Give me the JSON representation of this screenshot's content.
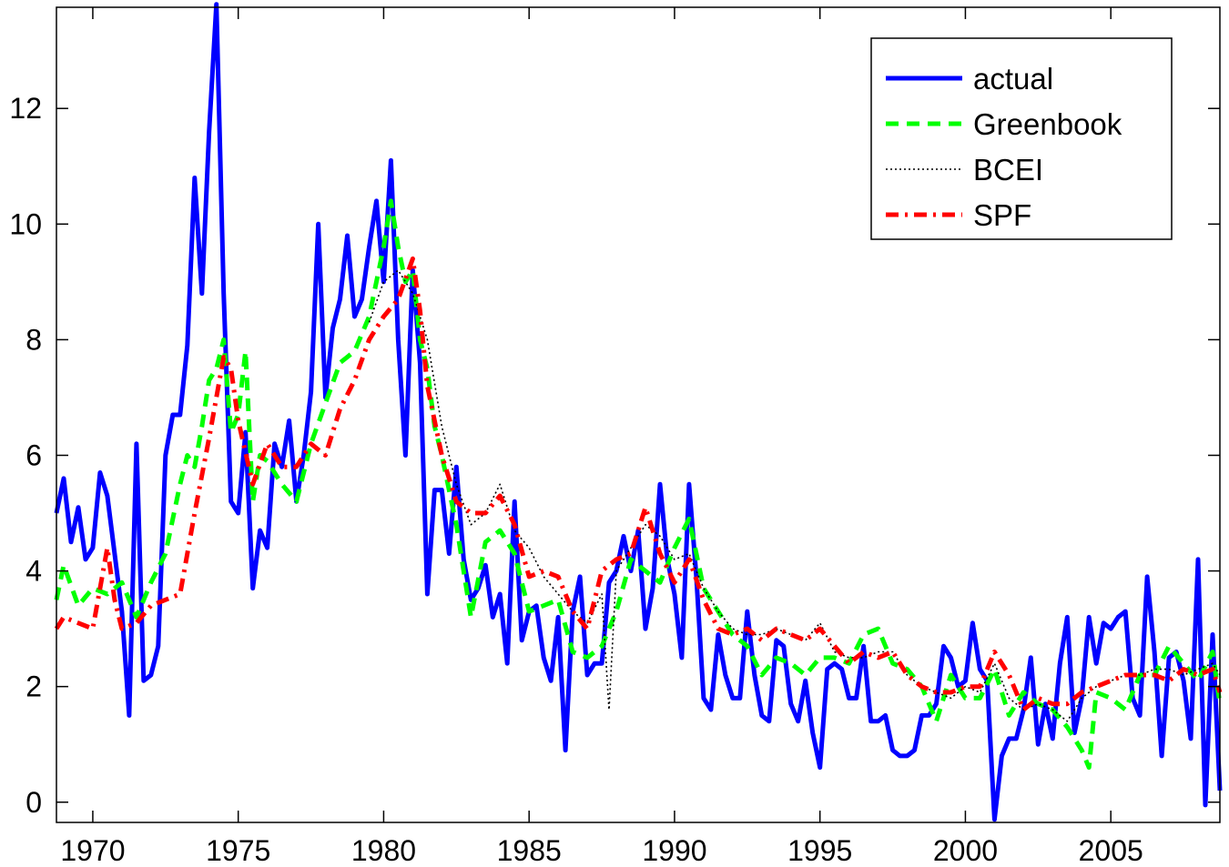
{
  "chart_data": {
    "type": "line",
    "title": "",
    "xlabel": "",
    "ylabel": "",
    "xlim": [
      1968.75,
      2008.75
    ],
    "ylim": [
      -0.35,
      13.75
    ],
    "x_ticks": [
      1970,
      1975,
      1980,
      1985,
      1990,
      1995,
      2000,
      2005
    ],
    "y_ticks": [
      0,
      2,
      4,
      6,
      8,
      10,
      12
    ],
    "grid": false,
    "legend_position": "top-right",
    "series": [
      {
        "name": "actual",
        "color": "#0000ff",
        "style": "solid",
        "x": [
          1968.75,
          1969.0,
          1969.25,
          1969.5,
          1969.75,
          1970.0,
          1970.25,
          1970.5,
          1970.75,
          1971.0,
          1971.25,
          1971.5,
          1971.75,
          1972.0,
          1972.25,
          1972.5,
          1972.75,
          1973.0,
          1973.25,
          1973.5,
          1973.75,
          1974.0,
          1974.25,
          1974.5,
          1974.75,
          1975.0,
          1975.25,
          1975.5,
          1975.75,
          1976.0,
          1976.25,
          1976.5,
          1976.75,
          1977.0,
          1977.25,
          1977.5,
          1977.75,
          1978.0,
          1978.25,
          1978.5,
          1978.75,
          1979.0,
          1979.25,
          1979.5,
          1979.75,
          1980.0,
          1980.25,
          1980.5,
          1980.75,
          1981.0,
          1981.25,
          1981.5,
          1981.75,
          1982.0,
          1982.25,
          1982.5,
          1982.75,
          1983.0,
          1983.25,
          1983.5,
          1983.75,
          1984.0,
          1984.25,
          1984.5,
          1984.75,
          1985.0,
          1985.25,
          1985.5,
          1985.75,
          1986.0,
          1986.25,
          1986.5,
          1986.75,
          1987.0,
          1987.25,
          1987.5,
          1987.75,
          1988.0,
          1988.25,
          1988.5,
          1988.75,
          1989.0,
          1989.25,
          1989.5,
          1989.75,
          1990.0,
          1990.25,
          1990.5,
          1990.75,
          1991.0,
          1991.25,
          1991.5,
          1991.75,
          1992.0,
          1992.25,
          1992.5,
          1992.75,
          1993.0,
          1993.25,
          1993.5,
          1993.75,
          1994.0,
          1994.25,
          1994.5,
          1994.75,
          1995.0,
          1995.25,
          1995.5,
          1995.75,
          1996.0,
          1996.25,
          1996.5,
          1996.75,
          1997.0,
          1997.25,
          1997.5,
          1997.75,
          1998.0,
          1998.25,
          1998.5,
          1998.75,
          1999.0,
          1999.25,
          1999.5,
          1999.75,
          2000.0,
          2000.25,
          2000.5,
          2000.75,
          2001.0,
          2001.25,
          2001.5,
          2001.75,
          2002.0,
          2002.25,
          2002.5,
          2002.75,
          2003.0,
          2003.25,
          2003.5,
          2003.75,
          2004.0,
          2004.25,
          2004.5,
          2004.75,
          2005.0,
          2005.25,
          2005.5,
          2005.75,
          2006.0,
          2006.25,
          2006.5,
          2006.75,
          2007.0,
          2007.25,
          2007.5,
          2007.75,
          2008.0,
          2008.25,
          2008.5,
          2008.75
        ],
        "y": [
          5.0,
          5.6,
          4.5,
          5.1,
          4.2,
          4.4,
          5.7,
          5.3,
          4.3,
          3.3,
          1.5,
          6.2,
          2.1,
          2.2,
          2.7,
          6.0,
          6.7,
          6.7,
          7.9,
          10.8,
          8.8,
          11.6,
          13.8,
          8.8,
          5.2,
          5.0,
          6.4,
          3.7,
          4.7,
          4.4,
          6.2,
          5.8,
          6.6,
          5.2,
          6.0,
          7.1,
          10.0,
          7.0,
          8.2,
          8.7,
          9.8,
          8.4,
          8.7,
          9.6,
          10.4,
          9.0,
          11.1,
          8.0,
          6.0,
          9.2,
          7.6,
          3.6,
          5.4,
          5.4,
          4.3,
          5.8,
          4.2,
          3.5,
          3.7,
          4.1,
          3.2,
          3.6,
          2.4,
          5.2,
          2.8,
          3.3,
          3.4,
          2.5,
          2.1,
          3.2,
          0.9,
          3.3,
          3.9,
          2.2,
          2.4,
          2.4,
          3.8,
          4.0,
          4.6,
          4.0,
          4.7,
          3.0,
          3.7,
          5.5,
          4.2,
          3.6,
          2.5,
          5.5,
          3.9,
          1.8,
          1.6,
          2.9,
          2.2,
          1.8,
          1.8,
          3.3,
          2.2,
          1.5,
          1.4,
          2.8,
          2.7,
          1.7,
          1.4,
          2.1,
          1.2,
          0.6,
          2.3,
          2.4,
          2.3,
          1.8,
          1.8,
          2.7,
          1.4,
          1.4,
          1.5,
          0.9,
          0.8,
          0.8,
          0.9,
          1.5,
          1.5,
          1.7,
          2.7,
          2.5,
          2.0,
          2.1,
          3.1,
          2.3,
          2.1,
          -0.3,
          0.8,
          1.1,
          1.1,
          1.6,
          2.5,
          1.0,
          1.7,
          1.1,
          2.4,
          3.2,
          1.2,
          1.8,
          3.2,
          2.4,
          3.1,
          3.0,
          3.2,
          3.3,
          1.8,
          1.5,
          3.9,
          2.6,
          0.8,
          2.5,
          2.6,
          2.1,
          1.1,
          4.2,
          -0.05,
          2.9,
          0.2
        ]
      },
      {
        "name": "Greenbook",
        "color": "#00ff00",
        "style": "dashed",
        "x": [
          1968.75,
          1969.0,
          1969.5,
          1970.0,
          1970.5,
          1971.0,
          1971.5,
          1972.0,
          1972.5,
          1973.0,
          1973.25,
          1973.5,
          1973.75,
          1974.0,
          1974.25,
          1974.5,
          1974.75,
          1975.0,
          1975.25,
          1975.5,
          1975.75,
          1976.0,
          1976.5,
          1977.0,
          1977.5,
          1978.0,
          1978.5,
          1979.0,
          1979.5,
          1980.0,
          1980.25,
          1980.5,
          1980.75,
          1981.0,
          1981.25,
          1981.5,
          1981.75,
          1982.0,
          1982.5,
          1983.0,
          1983.5,
          1984.0,
          1984.5,
          1985.0,
          1985.5,
          1986.0,
          1986.5,
          1987.0,
          1987.5,
          1988.0,
          1988.5,
          1989.0,
          1989.5,
          1990.0,
          1990.5,
          1991.0,
          1991.5,
          1992.0,
          1992.5,
          1993.0,
          1993.5,
          1994.0,
          1994.5,
          1995.0,
          1995.5,
          1996.0,
          1996.5,
          1997.0,
          1997.5,
          1998.0,
          1998.5,
          1999.0,
          1999.5,
          2000.0,
          2000.5,
          2001.0,
          2001.5,
          2002.0,
          2002.5,
          2003.0,
          2003.5,
          2004.0,
          2004.25,
          2004.5,
          2005.0,
          2005.5,
          2006.0,
          2006.5,
          2007.0,
          2007.5,
          2008.0,
          2008.5,
          2008.75
        ],
        "y": [
          3.5,
          4.1,
          3.4,
          3.7,
          3.6,
          3.8,
          3.2,
          3.8,
          4.3,
          5.5,
          6.0,
          5.8,
          6.5,
          7.3,
          7.5,
          8.0,
          6.4,
          6.7,
          7.8,
          5.2,
          6.0,
          5.9,
          5.5,
          5.2,
          6.2,
          6.9,
          7.6,
          7.8,
          8.4,
          9.6,
          10.4,
          9.6,
          9.0,
          9.2,
          8.0,
          7.5,
          6.5,
          6.0,
          4.8,
          3.2,
          4.5,
          4.7,
          4.3,
          3.3,
          3.4,
          3.5,
          2.6,
          2.5,
          2.7,
          3.3,
          4.2,
          4.0,
          3.8,
          4.4,
          4.9,
          3.7,
          3.3,
          2.9,
          2.7,
          2.2,
          2.5,
          2.4,
          2.2,
          2.5,
          2.5,
          2.4,
          2.9,
          3.0,
          2.4,
          2.3,
          2.0,
          1.4,
          2.2,
          1.8,
          1.8,
          2.3,
          1.5,
          1.9,
          1.7,
          1.6,
          1.3,
          0.9,
          0.6,
          1.9,
          1.8,
          1.6,
          2.2,
          2.2,
          2.7,
          2.4,
          2.1,
          2.6,
          1.7
        ]
      },
      {
        "name": "BCEI",
        "color": "#000000",
        "style": "dotted",
        "x": [
          1979.5,
          1980.0,
          1980.5,
          1981.0,
          1981.5,
          1982.0,
          1982.5,
          1983.0,
          1983.5,
          1984.0,
          1984.5,
          1985.0,
          1985.5,
          1986.0,
          1986.5,
          1987.0,
          1987.5,
          1987.75,
          1988.0,
          1988.5,
          1989.0,
          1989.5,
          1990.0,
          1990.5,
          1991.0,
          1991.5,
          1992.0,
          1992.5,
          1993.0,
          1993.5,
          1994.0,
          1994.5,
          1995.0,
          1995.5,
          1996.0,
          1996.5,
          1997.0,
          1997.5,
          1998.0,
          1998.5,
          1999.0,
          1999.5,
          2000.0,
          2000.5,
          2001.0,
          2001.5,
          2002.0,
          2002.5,
          2003.0,
          2003.5,
          2004.0,
          2004.5,
          2005.0,
          2005.5,
          2006.0,
          2006.5,
          2007.0,
          2007.5,
          2008.0,
          2008.5,
          2008.75
        ],
        "y": [
          8.3,
          9.0,
          9.2,
          8.8,
          8.0,
          6.5,
          5.5,
          4.8,
          5.0,
          5.5,
          4.7,
          4.4,
          3.9,
          3.6,
          3.3,
          3.1,
          3.6,
          1.6,
          4.0,
          4.4,
          4.8,
          4.6,
          4.2,
          4.3,
          3.7,
          3.3,
          3.0,
          2.9,
          2.9,
          3.0,
          2.9,
          2.8,
          3.1,
          2.6,
          2.5,
          2.5,
          2.6,
          2.6,
          2.2,
          2.0,
          1.9,
          1.8,
          2.0,
          1.9,
          2.4,
          1.8,
          1.6,
          1.7,
          1.6,
          1.4,
          1.8,
          2.0,
          2.1,
          2.2,
          2.2,
          2.3,
          2.3,
          2.2,
          2.3,
          2.4,
          2.2
        ]
      },
      {
        "name": "SPF",
        "color": "#ff0000",
        "style": "dashdot",
        "x": [
          1968.75,
          1969.0,
          1969.5,
          1970.0,
          1970.5,
          1970.75,
          1971.0,
          1971.5,
          1972.0,
          1972.5,
          1973.0,
          1973.5,
          1974.0,
          1974.5,
          1974.75,
          1975.0,
          1975.5,
          1976.0,
          1976.5,
          1977.0,
          1977.5,
          1978.0,
          1978.5,
          1979.0,
          1979.5,
          1980.0,
          1980.5,
          1981.0,
          1981.25,
          1981.5,
          1982.0,
          1982.5,
          1983.0,
          1983.5,
          1984.0,
          1984.5,
          1985.0,
          1985.5,
          1986.0,
          1986.5,
          1987.0,
          1987.5,
          1988.0,
          1988.5,
          1989.0,
          1989.5,
          1990.0,
          1990.5,
          1991.0,
          1991.5,
          1992.0,
          1992.5,
          1993.0,
          1993.5,
          1994.0,
          1994.5,
          1995.0,
          1995.5,
          1996.0,
          1996.5,
          1997.0,
          1997.5,
          1998.0,
          1998.5,
          1999.0,
          1999.5,
          2000.0,
          2000.5,
          2001.0,
          2001.5,
          2002.0,
          2002.5,
          2003.0,
          2003.5,
          2004.0,
          2004.5,
          2005.0,
          2005.5,
          2006.0,
          2006.5,
          2007.0,
          2007.5,
          2008.0,
          2008.5,
          2008.75
        ],
        "y": [
          3.0,
          3.2,
          3.1,
          3.0,
          4.4,
          3.5,
          3.0,
          3.1,
          3.4,
          3.5,
          3.6,
          5.0,
          6.3,
          7.7,
          7.5,
          6.6,
          5.5,
          6.2,
          5.8,
          5.8,
          6.2,
          6.0,
          6.8,
          7.3,
          8.0,
          8.4,
          8.7,
          9.4,
          8.5,
          7.2,
          6.0,
          5.2,
          5.0,
          5.0,
          5.3,
          4.8,
          3.9,
          4.0,
          3.9,
          3.3,
          3.0,
          4.0,
          4.2,
          4.3,
          5.1,
          4.3,
          3.8,
          4.2,
          3.5,
          3.0,
          2.9,
          3.0,
          2.8,
          3.0,
          2.9,
          2.8,
          3.0,
          2.7,
          2.4,
          2.6,
          2.5,
          2.6,
          2.2,
          2.0,
          1.9,
          1.9,
          2.0,
          2.0,
          2.6,
          2.2,
          1.6,
          1.8,
          1.7,
          1.7,
          1.9,
          2.0,
          2.1,
          2.2,
          2.2,
          2.2,
          2.1,
          2.3,
          2.2,
          2.3,
          1.9
        ]
      }
    ]
  }
}
